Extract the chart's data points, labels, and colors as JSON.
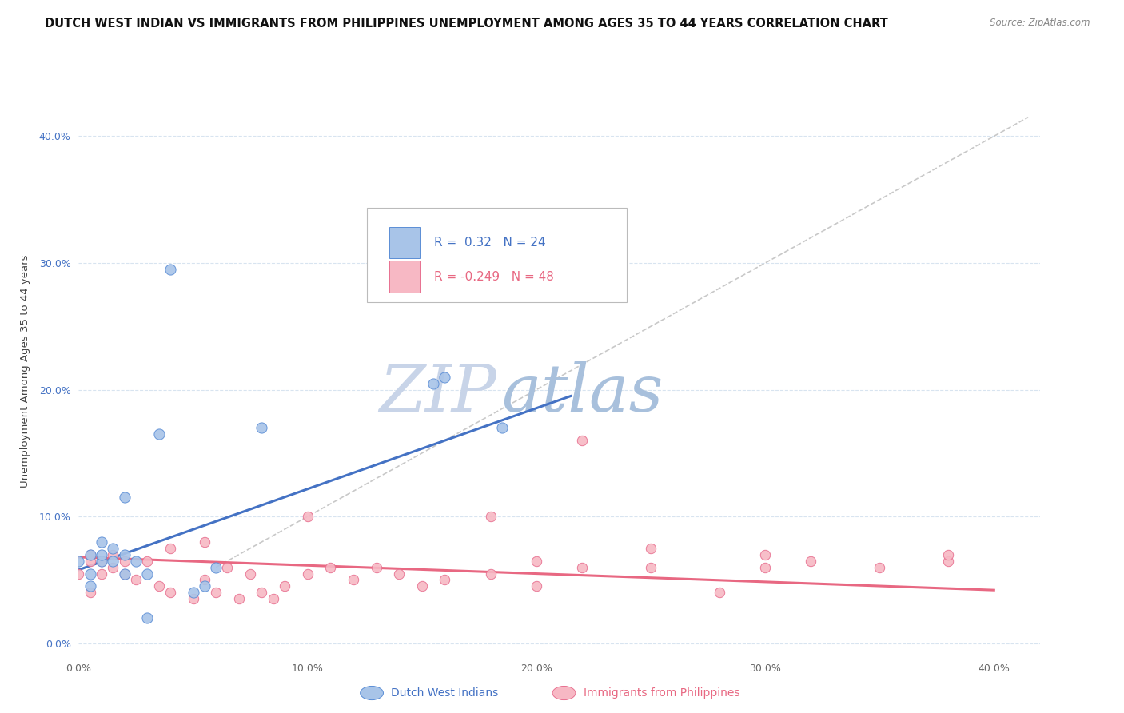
{
  "title": "DUTCH WEST INDIAN VS IMMIGRANTS FROM PHILIPPINES UNEMPLOYMENT AMONG AGES 35 TO 44 YEARS CORRELATION CHART",
  "source": "Source: ZipAtlas.com",
  "ylabel": "Unemployment Among Ages 35 to 44 years",
  "xlim": [
    0.0,
    0.42
  ],
  "ylim": [
    -0.01,
    0.44
  ],
  "ytick_vals": [
    0.0,
    0.1,
    0.2,
    0.3,
    0.4
  ],
  "xtick_vals": [
    0.0,
    0.1,
    0.2,
    0.3,
    0.4
  ],
  "blue_R": 0.32,
  "blue_N": 24,
  "pink_R": -0.249,
  "pink_N": 48,
  "blue_fill": "#A8C4E8",
  "pink_fill": "#F7B8C4",
  "blue_edge": "#5B8ED6",
  "pink_edge": "#E87090",
  "blue_line_color": "#4472C4",
  "pink_line_color": "#E86882",
  "diag_line_color": "#BBBBBB",
  "watermark_zip": "#C8D4E8",
  "watermark_atlas": "#A8C0DC",
  "blue_scatter_x": [
    0.005,
    0.01,
    0.01,
    0.01,
    0.015,
    0.015,
    0.02,
    0.02,
    0.025,
    0.03,
    0.04,
    0.05,
    0.055,
    0.06,
    0.08,
    0.155,
    0.16,
    0.185,
    0.0,
    0.005,
    0.005,
    0.02,
    0.03,
    0.035
  ],
  "blue_scatter_y": [
    0.055,
    0.065,
    0.07,
    0.08,
    0.065,
    0.075,
    0.055,
    0.07,
    0.065,
    0.055,
    0.295,
    0.04,
    0.045,
    0.06,
    0.17,
    0.205,
    0.21,
    0.17,
    0.065,
    0.045,
    0.07,
    0.115,
    0.02,
    0.165
  ],
  "pink_scatter_x": [
    0.0,
    0.005,
    0.005,
    0.005,
    0.01,
    0.01,
    0.015,
    0.015,
    0.02,
    0.02,
    0.025,
    0.03,
    0.035,
    0.04,
    0.04,
    0.05,
    0.055,
    0.055,
    0.06,
    0.065,
    0.07,
    0.075,
    0.08,
    0.085,
    0.09,
    0.1,
    0.1,
    0.11,
    0.12,
    0.13,
    0.14,
    0.15,
    0.16,
    0.18,
    0.18,
    0.2,
    0.2,
    0.22,
    0.22,
    0.25,
    0.25,
    0.28,
    0.3,
    0.3,
    0.32,
    0.35,
    0.38,
    0.38
  ],
  "pink_scatter_y": [
    0.055,
    0.04,
    0.065,
    0.07,
    0.055,
    0.065,
    0.06,
    0.07,
    0.055,
    0.065,
    0.05,
    0.065,
    0.045,
    0.04,
    0.075,
    0.035,
    0.05,
    0.08,
    0.04,
    0.06,
    0.035,
    0.055,
    0.04,
    0.035,
    0.045,
    0.055,
    0.1,
    0.06,
    0.05,
    0.06,
    0.055,
    0.045,
    0.05,
    0.055,
    0.1,
    0.045,
    0.065,
    0.06,
    0.16,
    0.06,
    0.075,
    0.04,
    0.06,
    0.07,
    0.065,
    0.06,
    0.065,
    0.07
  ],
  "blue_line_x": [
    0.0,
    0.215
  ],
  "blue_line_y": [
    0.058,
    0.195
  ],
  "pink_line_x": [
    0.0,
    0.4
  ],
  "pink_line_y": [
    0.068,
    0.042
  ],
  "diag_line_x": [
    0.06,
    0.415
  ],
  "diag_line_y": [
    0.06,
    0.415
  ],
  "background_color": "#FFFFFF",
  "grid_color": "#D8E4F0",
  "scatter_size_blue": 90,
  "scatter_size_pink": 80
}
